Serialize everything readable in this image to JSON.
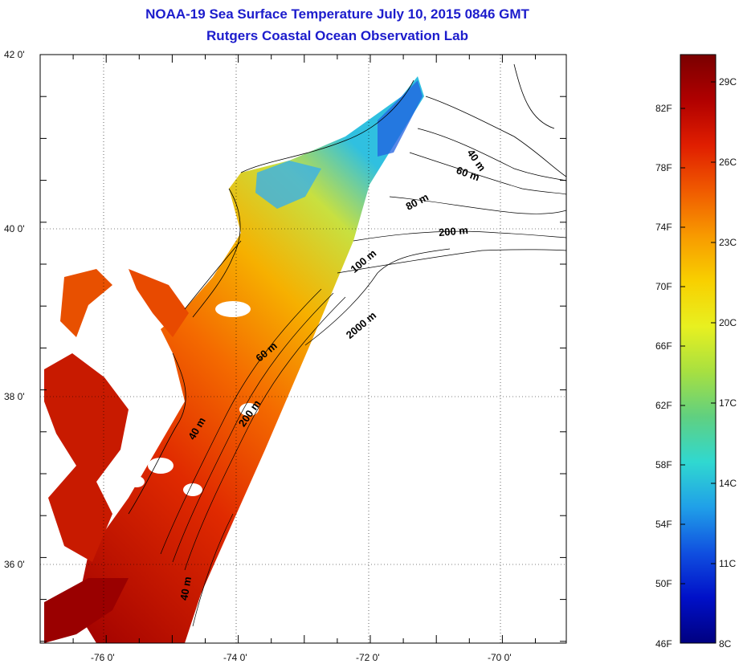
{
  "title": {
    "line1": "NOAA-19 Sea Surface Temperature July 10, 2015 0846 GMT",
    "line2": "Rutgers Coastal Ocean Observation Lab"
  },
  "map": {
    "lon_ticks": [
      "-76 0'",
      "-74 0'",
      "-72 0'",
      "-70 0'"
    ],
    "lat_ticks": [
      "42 0'",
      "40 0'",
      "38 0'",
      "36 0'"
    ],
    "bathymetry_labels": [
      "40 m",
      "60 m",
      "80 m",
      "100 m",
      "200 m",
      "2000 m",
      "60 m",
      "200 m",
      "40 m",
      "40 m"
    ]
  },
  "colorbar": {
    "fahrenheit_labels": [
      "82F",
      "78F",
      "74F",
      "70F",
      "66F",
      "62F",
      "58F",
      "54F",
      "50F",
      "46F"
    ],
    "celsius_labels": [
      "29C",
      "26C",
      "23C",
      "20C",
      "17C",
      "14C",
      "11C",
      "8C"
    ],
    "colors": [
      "#7a0000",
      "#b00000",
      "#e01e00",
      "#f05a00",
      "#f89a00",
      "#f8d000",
      "#e8f020",
      "#a8e040",
      "#60d080",
      "#30d8d0",
      "#20a0e8",
      "#1050e0",
      "#0010c8",
      "#000080"
    ]
  }
}
